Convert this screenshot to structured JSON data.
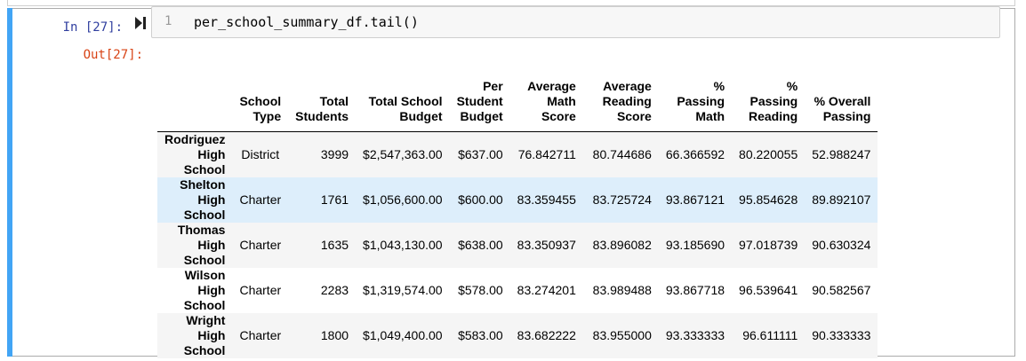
{
  "cell": {
    "in_prompt": "In [27]:",
    "out_prompt": "Out[27]:",
    "line_number": "1",
    "code": "per_school_summary_df.tail()"
  },
  "table": {
    "columns": [
      [
        "School",
        "Type"
      ],
      [
        "Total",
        "Students"
      ],
      [
        "Total School",
        "Budget"
      ],
      [
        "Per",
        "Student",
        "Budget"
      ],
      [
        "Average",
        "Math Score"
      ],
      [
        "Average",
        "Reading",
        "Score"
      ],
      [
        "% Passing",
        "Math"
      ],
      [
        "% Passing",
        "Reading"
      ],
      [
        "% Overall",
        "Passing"
      ]
    ],
    "rows": [
      {
        "name": [
          "Rodriguez",
          "High School"
        ],
        "values": [
          "District",
          "3999",
          "$2,547,363.00",
          "$637.00",
          "76.842711",
          "80.744686",
          "66.366592",
          "80.220055",
          "52.988247"
        ]
      },
      {
        "name": [
          "Shelton",
          "High School"
        ],
        "values": [
          "Charter",
          "1761",
          "$1,056,600.00",
          "$600.00",
          "83.359455",
          "83.725724",
          "93.867121",
          "95.854628",
          "89.892107"
        ]
      },
      {
        "name": [
          "Thomas",
          "High School"
        ],
        "values": [
          "Charter",
          "1635",
          "$1,043,130.00",
          "$638.00",
          "83.350937",
          "83.896082",
          "93.185690",
          "97.018739",
          "90.630324"
        ]
      },
      {
        "name": [
          "Wilson High",
          "School"
        ],
        "values": [
          "Charter",
          "2283",
          "$1,319,574.00",
          "$578.00",
          "83.274201",
          "83.989488",
          "93.867718",
          "96.539641",
          "90.582567"
        ]
      },
      {
        "name": [
          "Wright High",
          "School"
        ],
        "values": [
          "Charter",
          "1800",
          "$1,049,400.00",
          "$583.00",
          "83.682222",
          "83.955000",
          "93.333333",
          "96.611111",
          "90.333333"
        ]
      }
    ],
    "highlighted_row": 1
  },
  "colors": {
    "cell_selected_bar": "#42a5f5",
    "in_prompt": "#303f9f",
    "out_prompt": "#d84315",
    "row_highlight": "#ddeefb"
  },
  "icons": {
    "run": "run-cell-icon"
  }
}
